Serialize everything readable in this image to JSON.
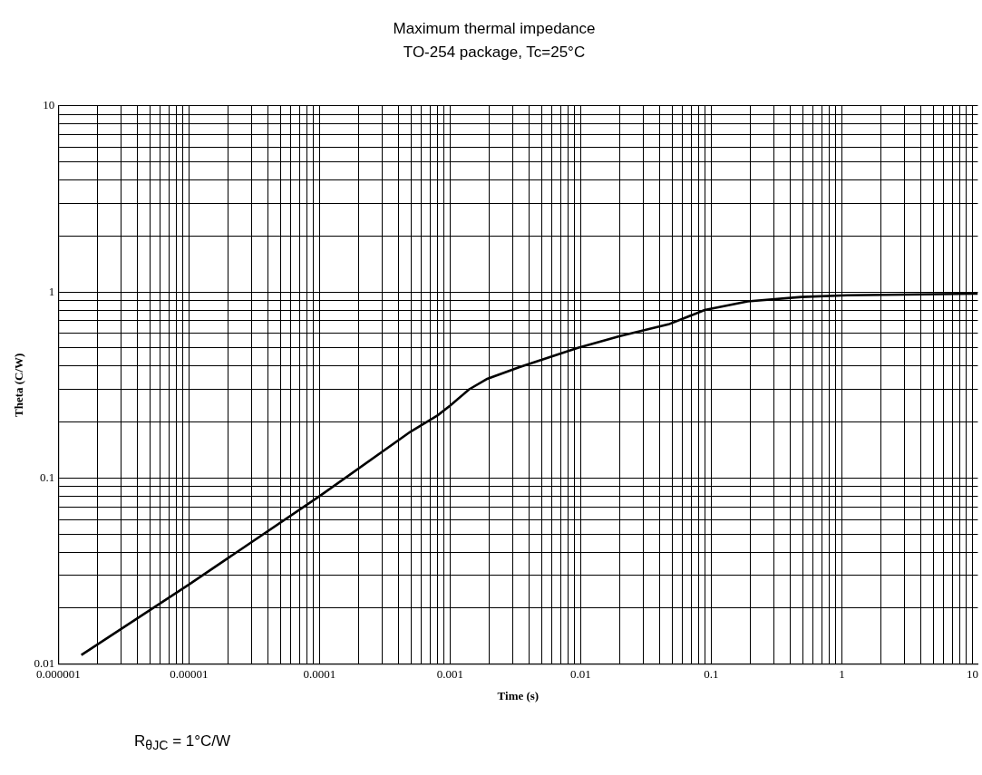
{
  "chart_data": {
    "type": "line",
    "title": "Maximum thermal impedance",
    "subtitle": "TO-254 package, Tc=25°C",
    "xlabel": "Time (s)",
    "ylabel": "Theta (C/W)",
    "series": [
      {
        "color": "#000000",
        "x": [
          1.5e-06,
          1e-05,
          0.0001,
          0.0005,
          0.0008,
          0.001,
          0.0014,
          0.0019,
          0.0034,
          0.0094,
          0.02,
          0.047,
          0.089,
          0.19,
          0.49,
          1.1,
          11
        ],
        "values": [
          0.0112,
          0.0268,
          0.08,
          0.178,
          0.217,
          0.245,
          0.3,
          0.34,
          0.395,
          0.5,
          0.58,
          0.67,
          0.8,
          0.89,
          0.94,
          0.96,
          0.98
        ]
      }
    ],
    "log": "xy",
    "grid": true,
    "legend": false,
    "marker": "none",
    "line_style": "solid",
    "xlim": [
      1e-06,
      11
    ],
    "ylim": [
      0.01,
      10
    ],
    "xticks": [
      {
        "value": 1e-06,
        "label": "0.000001"
      },
      {
        "value": 2e-06,
        "label": null
      },
      {
        "value": 3e-06,
        "label": null
      },
      {
        "value": 4e-06,
        "label": null
      },
      {
        "value": 5e-06,
        "label": null
      },
      {
        "value": 6e-06,
        "label": null
      },
      {
        "value": 7e-06,
        "label": null
      },
      {
        "value": 8e-06,
        "label": null
      },
      {
        "value": 9e-06,
        "label": null
      },
      {
        "value": 1e-05,
        "label": "0.00001"
      },
      {
        "value": 2e-05,
        "label": null
      },
      {
        "value": 3e-05,
        "label": null
      },
      {
        "value": 4e-05,
        "label": null
      },
      {
        "value": 5e-05,
        "label": null
      },
      {
        "value": 6e-05,
        "label": null
      },
      {
        "value": 7e-05,
        "label": null
      },
      {
        "value": 8e-05,
        "label": null
      },
      {
        "value": 9e-05,
        "label": null
      },
      {
        "value": 0.0001,
        "label": "0.0001"
      },
      {
        "value": 0.0002,
        "label": null
      },
      {
        "value": 0.0003,
        "label": null
      },
      {
        "value": 0.0004,
        "label": null
      },
      {
        "value": 0.0005,
        "label": null
      },
      {
        "value": 0.0006,
        "label": null
      },
      {
        "value": 0.0007,
        "label": null
      },
      {
        "value": 0.0008,
        "label": null
      },
      {
        "value": 0.0009,
        "label": null
      },
      0.001,
      {
        "value": 0.002,
        "label": null
      },
      {
        "value": 0.003,
        "label": null
      },
      {
        "value": 0.004,
        "label": null
      },
      {
        "value": 0.005,
        "label": null
      },
      {
        "value": 0.006,
        "label": null
      },
      {
        "value": 0.007,
        "label": null
      },
      {
        "value": 0.008,
        "label": null
      },
      {
        "value": 0.009,
        "label": null
      },
      0.01,
      {
        "value": 0.02,
        "label": null
      },
      {
        "value": 0.03,
        "label": null
      },
      {
        "value": 0.04,
        "label": null
      },
      {
        "value": 0.05,
        "label": null
      },
      {
        "value": 0.06,
        "label": null
      },
      {
        "value": 0.07,
        "label": null
      },
      {
        "value": 0.08,
        "label": null
      },
      {
        "value": 0.09,
        "label": null
      },
      0.1,
      {
        "value": 0.2,
        "label": null
      },
      {
        "value": 0.3,
        "label": null
      },
      {
        "value": 0.4,
        "label": null
      },
      {
        "value": 0.5,
        "label": null
      },
      {
        "value": 0.6,
        "label": null
      },
      {
        "value": 0.7,
        "label": null
      },
      {
        "value": 0.8,
        "label": null
      },
      {
        "value": 0.9,
        "label": null
      },
      1,
      {
        "value": 2,
        "label": null
      },
      {
        "value": 3,
        "label": null
      },
      {
        "value": 4,
        "label": null
      },
      {
        "value": 5,
        "label": null
      },
      {
        "value": 6,
        "label": null
      },
      {
        "value": 7,
        "label": null
      },
      {
        "value": 8,
        "label": null
      },
      {
        "value": 9,
        "label": null
      },
      10
    ],
    "yticks": [
      0.01,
      {
        "value": 0.02,
        "label": null
      },
      {
        "value": 0.03,
        "label": null
      },
      {
        "value": 0.04,
        "label": null
      },
      {
        "value": 0.05,
        "label": null
      },
      {
        "value": 0.06,
        "label": null
      },
      {
        "value": 0.07,
        "label": null
      },
      {
        "value": 0.08,
        "label": null
      },
      {
        "value": 0.09,
        "label": null
      },
      0.1,
      {
        "value": 0.2,
        "label": null
      },
      {
        "value": 0.3,
        "label": null
      },
      {
        "value": 0.4,
        "label": null
      },
      {
        "value": 0.5,
        "label": null
      },
      {
        "value": 0.6,
        "label": null
      },
      {
        "value": 0.7,
        "label": null
      },
      {
        "value": 0.8,
        "label": null
      },
      {
        "value": 0.9,
        "label": null
      },
      1,
      {
        "value": 2,
        "label": null
      },
      {
        "value": 3,
        "label": null
      },
      {
        "value": 4,
        "label": null
      },
      {
        "value": 5,
        "label": null
      },
      {
        "value": 6,
        "label": null
      },
      {
        "value": 7,
        "label": null
      },
      {
        "value": 8,
        "label": null
      },
      {
        "value": 9,
        "label": null
      },
      10
    ],
    "annotations": [
      "R$_{θJC}$ = 1°C/W"
    ]
  }
}
